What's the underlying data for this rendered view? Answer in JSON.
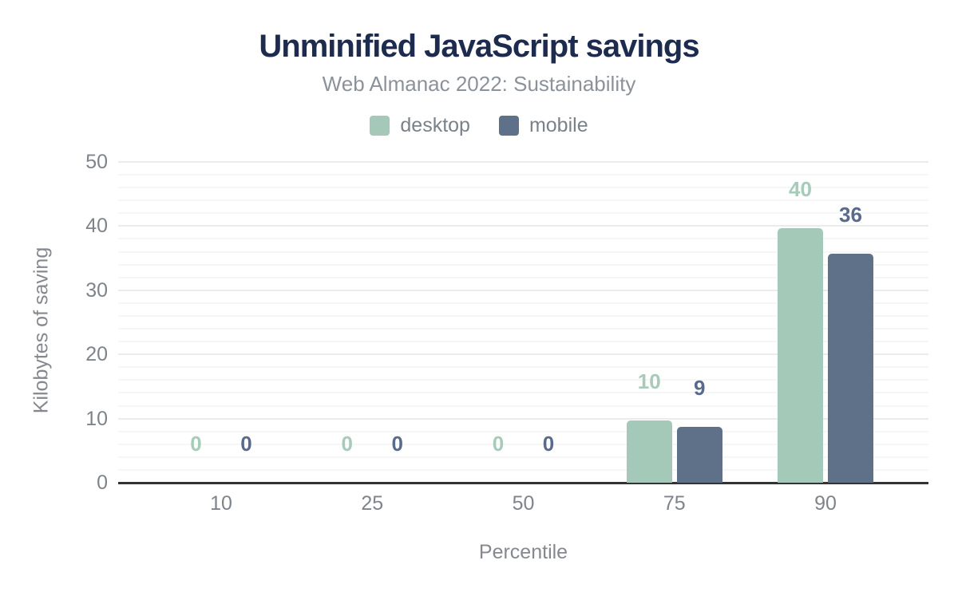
{
  "title": "Unminified JavaScript savings",
  "subtitle": "Web Almanac 2022: Sustainability",
  "colors": {
    "desktop_bar": "#a4c9b8",
    "mobile_bar": "#5f7089",
    "desktop_label": "#a6cbb9",
    "mobile_label": "#5a6a8d",
    "title_text": "#1c2b4e",
    "axis_text": "#7e848b",
    "baseline": "#333333",
    "grid_major": "#ebebeb",
    "grid_minor": "#f6f6f6"
  },
  "chart_data": {
    "type": "bar",
    "title": "Unminified JavaScript savings",
    "subtitle": "Web Almanac 2022: Sustainability",
    "categories": [
      "10",
      "25",
      "50",
      "75",
      "90"
    ],
    "series": [
      {
        "name": "desktop",
        "values": [
          0,
          0,
          0,
          10,
          40
        ],
        "bar_heights_est": [
          0,
          0,
          0,
          9.7,
          39.7
        ],
        "color_key": "desktop"
      },
      {
        "name": "mobile",
        "values": [
          0,
          0,
          0,
          9,
          36
        ],
        "bar_heights_est": [
          0,
          0,
          0,
          8.7,
          35.7
        ],
        "color_key": "mobile"
      }
    ],
    "xlabel": "Percentile",
    "ylabel": "Kilobytes of saving",
    "ylim": [
      0,
      50
    ],
    "yticks": [
      0,
      10,
      20,
      30,
      40,
      50
    ],
    "minor_grid_step": 2,
    "major_grid_step": 10,
    "grid": true,
    "legend_position": "top"
  }
}
